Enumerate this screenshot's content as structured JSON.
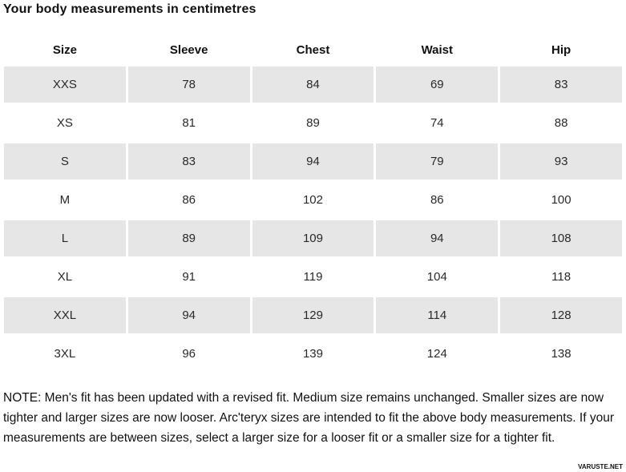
{
  "page": {
    "title": "Your body measurements in centimetres",
    "watermark": "VARUSTE.NET"
  },
  "table": {
    "columns": [
      "Size",
      "Sleeve",
      "Chest",
      "Waist",
      "Hip"
    ],
    "rows": [
      [
        "XXS",
        "78",
        "84",
        "69",
        "83"
      ],
      [
        "XS",
        "81",
        "89",
        "74",
        "88"
      ],
      [
        "S",
        "83",
        "94",
        "79",
        "93"
      ],
      [
        "M",
        "86",
        "102",
        "86",
        "100"
      ],
      [
        "L",
        "89",
        "109",
        "94",
        "108"
      ],
      [
        "XL",
        "91",
        "119",
        "104",
        "118"
      ],
      [
        "XXL",
        "94",
        "129",
        "114",
        "128"
      ],
      [
        "3XL",
        "96",
        "139",
        "124",
        "138"
      ]
    ]
  },
  "note": "NOTE: Men's fit has been updated with a revised fit. Medium size remains unchanged. Smaller sizes are now tighter and larger sizes are now looser. Arc'teryx sizes are intended to fit the above body measurements. If your measurements are between sizes, select a larger size for a looser fit or a smaller size for a tighter fit.",
  "colors": {
    "row_shade": "#e6e6e6",
    "text": "#1a1a1a",
    "background": "#ffffff"
  }
}
